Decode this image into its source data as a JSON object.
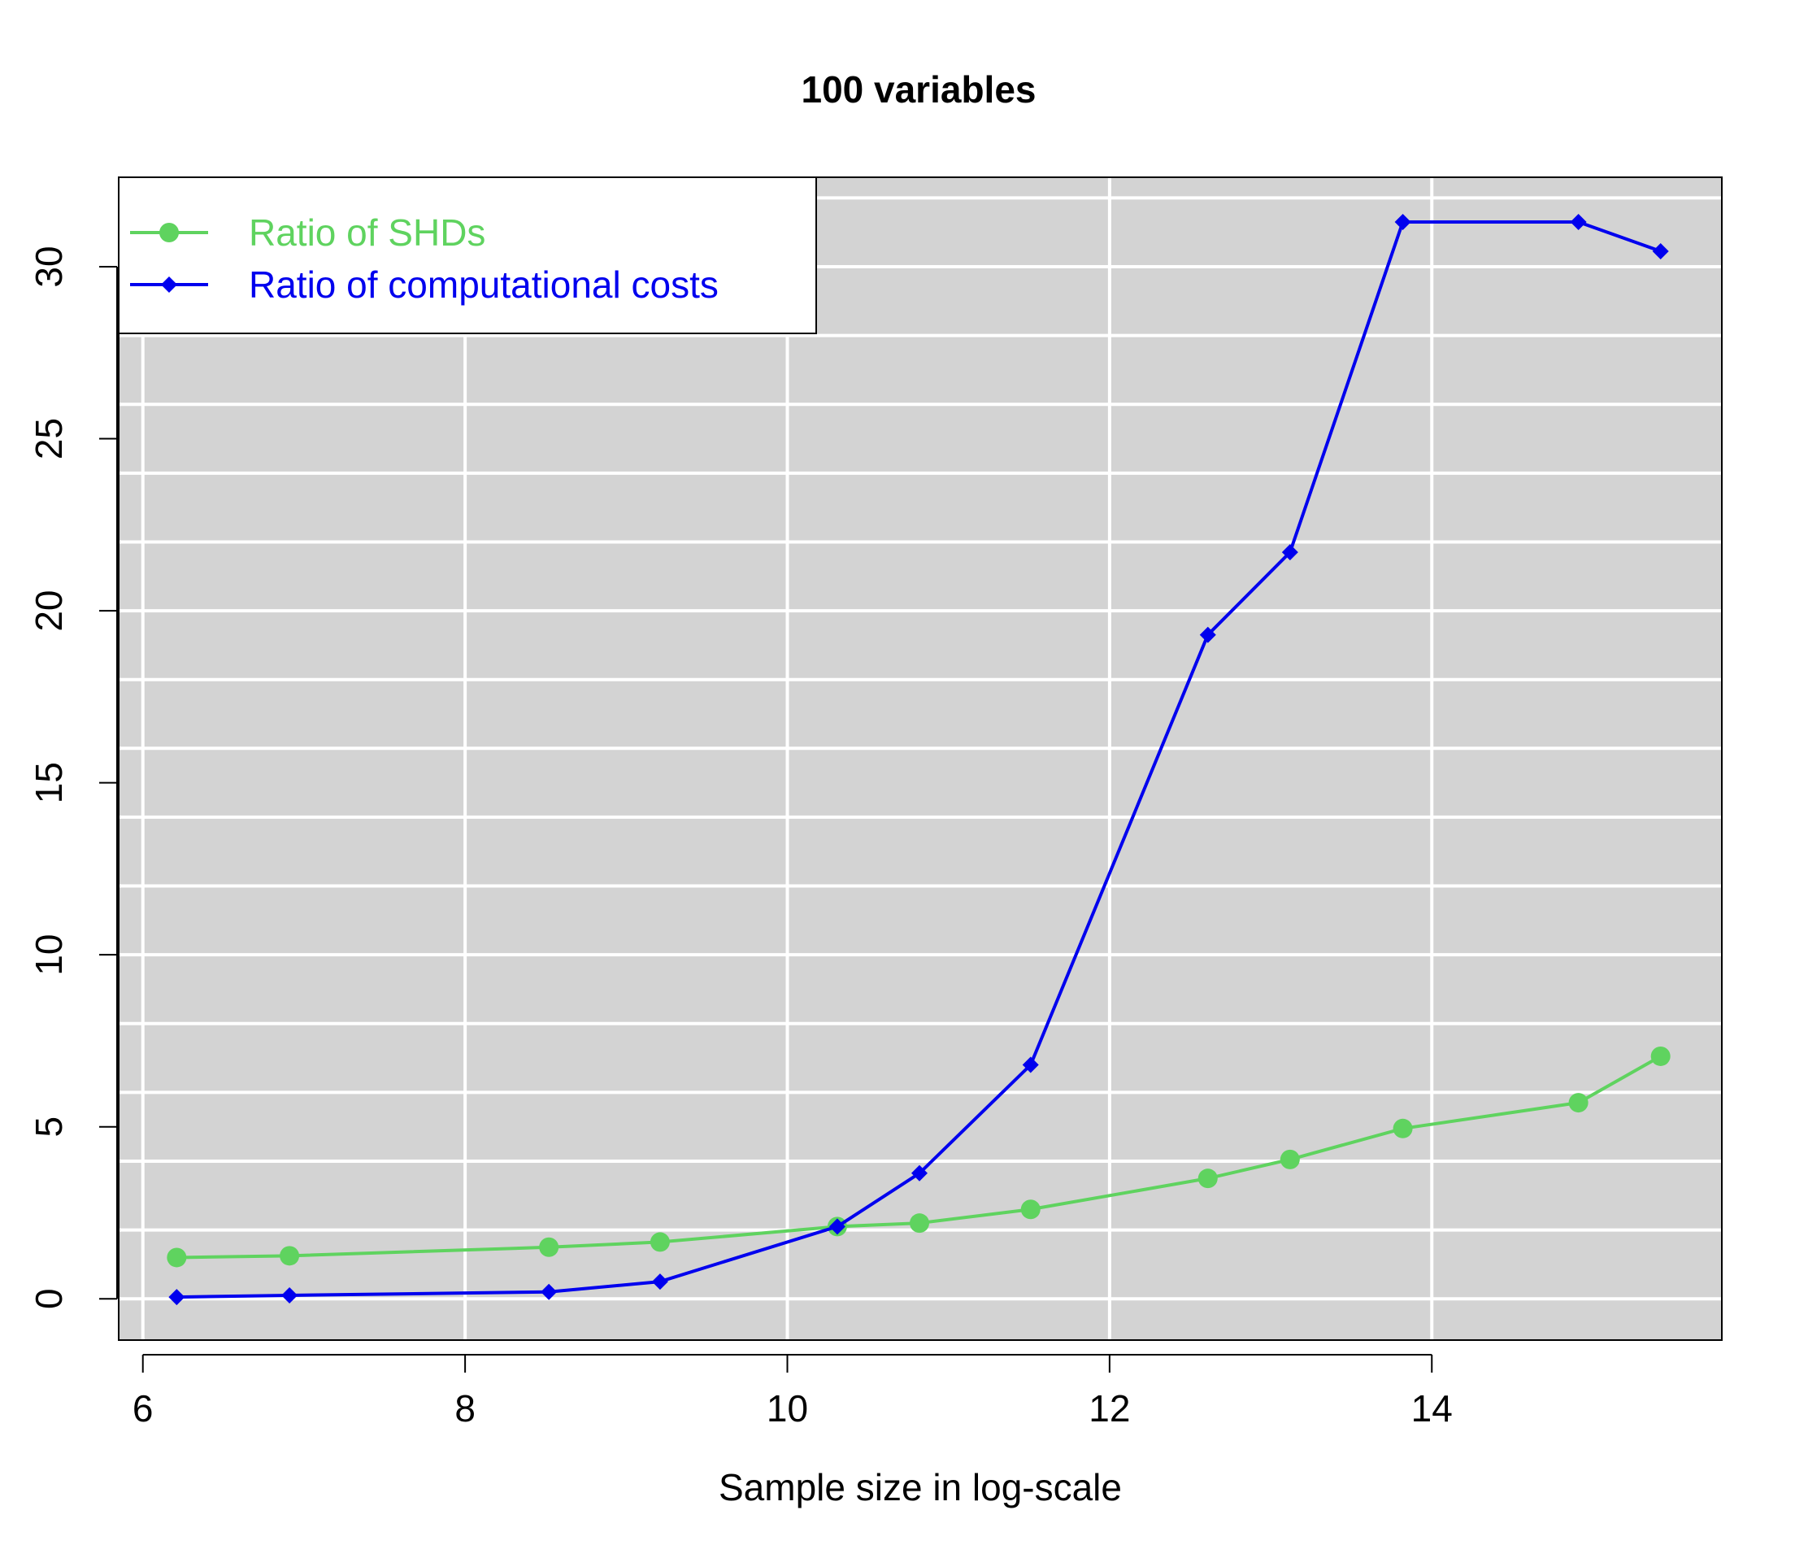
{
  "chart_data": {
    "type": "line",
    "title": "100 variables",
    "xlabel": "Sample size in log-scale",
    "ylabel": "",
    "xlim": [
      5.85,
      15.8
    ],
    "ylim": [
      -1.2,
      32.6
    ],
    "xticks": [
      6,
      8,
      10,
      12,
      14
    ],
    "yticks": [
      0,
      5,
      10,
      15,
      20,
      25,
      30
    ],
    "grid": true,
    "grid_x": [
      6,
      8,
      10,
      12,
      14
    ],
    "grid_y": [
      0,
      2,
      4,
      6,
      8,
      10,
      12,
      14,
      16,
      18,
      20,
      22,
      24,
      26,
      28,
      30,
      32
    ],
    "background": "#d3d3d3",
    "legend_position": "top-left",
    "series": [
      {
        "name": "Ratio of SHDs",
        "color": "#5fd35f",
        "marker": "circle",
        "points": [
          {
            "x": 6.21,
            "y": 1.2
          },
          {
            "x": 6.91,
            "y": 1.25
          },
          {
            "x": 8.52,
            "y": 1.5
          },
          {
            "x": 9.21,
            "y": 1.65
          },
          {
            "x": 10.31,
            "y": 2.1
          },
          {
            "x": 10.82,
            "y": 2.2
          },
          {
            "x": 11.51,
            "y": 2.6
          },
          {
            "x": 12.61,
            "y": 3.5
          },
          {
            "x": 13.12,
            "y": 4.05
          },
          {
            "x": 13.82,
            "y": 4.95
          },
          {
            "x": 14.91,
            "y": 5.7
          },
          {
            "x": 15.42,
            "y": 7.05
          }
        ]
      },
      {
        "name": "Ratio of computational costs",
        "color": "#0000ee",
        "marker": "diamond",
        "points": [
          {
            "x": 6.21,
            "y": 0.05
          },
          {
            "x": 6.91,
            "y": 0.1
          },
          {
            "x": 8.52,
            "y": 0.2
          },
          {
            "x": 9.21,
            "y": 0.5
          },
          {
            "x": 10.31,
            "y": 2.1
          },
          {
            "x": 10.82,
            "y": 3.65
          },
          {
            "x": 11.51,
            "y": 6.8
          },
          {
            "x": 12.61,
            "y": 19.3
          },
          {
            "x": 13.12,
            "y": 21.7
          },
          {
            "x": 13.82,
            "y": 31.3
          },
          {
            "x": 14.91,
            "y": 31.3
          },
          {
            "x": 15.42,
            "y": 30.45
          }
        ]
      }
    ]
  }
}
